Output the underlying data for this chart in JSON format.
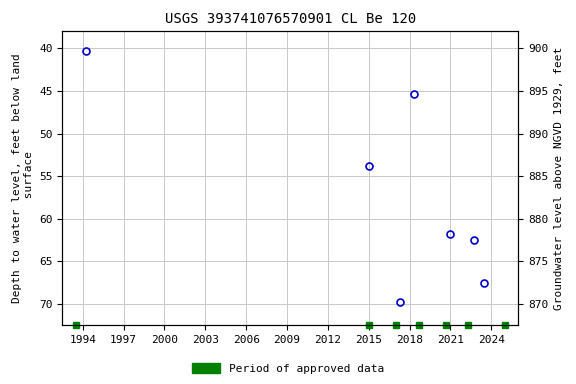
{
  "title": "USGS 393741076570901 CL Be 120",
  "ylabel_left": "Depth to water level, feet below land\n surface",
  "ylabel_right": "Groundwater level above NGVD 1929, feet",
  "data_points": [
    {
      "year": 1994.2,
      "depth": 40.3
    },
    {
      "year": 2015.0,
      "depth": 53.8
    },
    {
      "year": 2017.3,
      "depth": 69.8
    },
    {
      "year": 2018.3,
      "depth": 45.3
    },
    {
      "year": 2021.0,
      "depth": 61.8
    },
    {
      "year": 2022.7,
      "depth": 62.5
    },
    {
      "year": 2023.5,
      "depth": 67.5
    }
  ],
  "green_markers_x": [
    1993.5,
    2015.0,
    2017.0,
    2018.7,
    2020.7,
    2022.3,
    2025.0
  ],
  "ylim_left": [
    72.5,
    38.0
  ],
  "ylim_right": [
    867.5,
    902.0
  ],
  "xlim": [
    1992.5,
    2026.0
  ],
  "xticks": [
    1994,
    1997,
    2000,
    2003,
    2006,
    2009,
    2012,
    2015,
    2018,
    2021,
    2024
  ],
  "yticks_left": [
    40,
    45,
    50,
    55,
    60,
    65,
    70
  ],
  "yticks_right": [
    870,
    875,
    880,
    885,
    890,
    895,
    900
  ],
  "point_color": "#0000cc",
  "point_markersize": 5,
  "legend_label": "Period of approved data",
  "legend_color": "#008000",
  "background_color": "#ffffff",
  "grid_color": "#c8c8c8",
  "title_fontsize": 10,
  "label_fontsize": 8,
  "tick_fontsize": 8
}
